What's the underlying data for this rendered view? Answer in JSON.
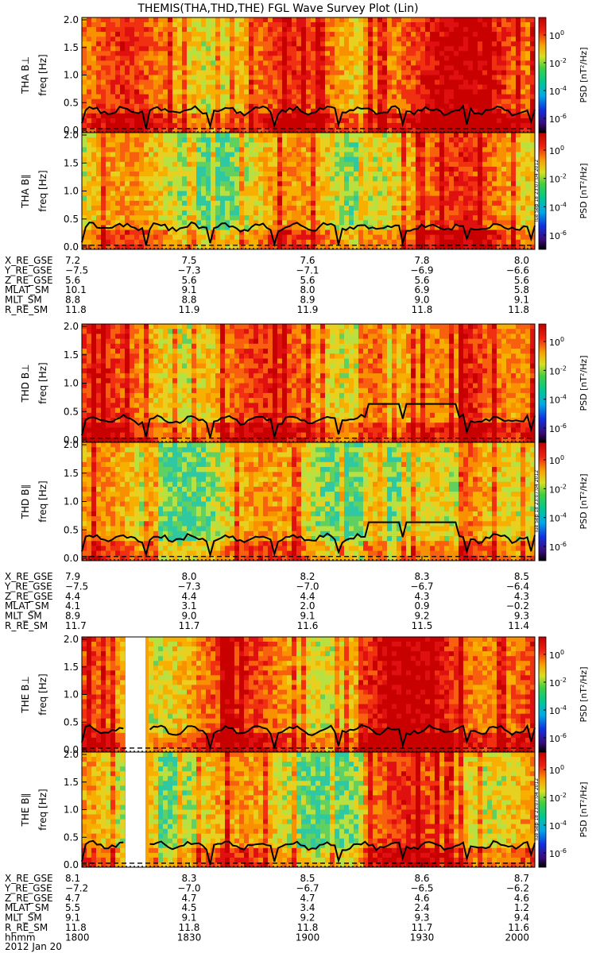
{
  "title": "THEMIS(THA,THD,THE) FGL Wave Survey Plot (Lin)",
  "timestamp": "Tue Sep 18 23:07:04 2012",
  "date_label": "2012 Jan 20",
  "colorbar": {
    "label": "PSD [nT²/Hz]",
    "ticks": [
      {
        "base": "10",
        "exp": "0"
      },
      {
        "base": "10",
        "exp": "-2"
      },
      {
        "base": "10",
        "exp": "-4"
      },
      {
        "base": "10",
        "exp": "-6"
      }
    ]
  },
  "colors": {
    "background": "#f7a300",
    "line": "#000000",
    "hot": "#e01010",
    "cool": "#60d060",
    "cold": "#20c0b0"
  },
  "chart_data": [
    {
      "type": "heatmap",
      "probe": "THA",
      "panels": [
        {
          "label": "THA B⊥",
          "ylabel": "freq [Hz]",
          "ylim": [
            0,
            2.0
          ]
        },
        {
          "label": "THA B∥",
          "ylabel": "freq [Hz]",
          "ylim": [
            0,
            2.0
          ]
        }
      ],
      "yticks": [
        "0.0",
        "0.5",
        "1.0",
        "1.5",
        "2.0"
      ],
      "ephemeris": {
        "labels": [
          "X_RE_GSE",
          "Y_RE_GSE",
          "Z_RE_GSE",
          "MLAT_SM",
          "MLT_SM",
          "R_RE_SM"
        ],
        "rows": [
          [
            "7.2",
            "7.5",
            "7.6",
            "7.8",
            "8.0"
          ],
          [
            "−7.5",
            "−7.3",
            "−7.1",
            "−6.9",
            "−6.6"
          ],
          [
            "5.6",
            "5.6",
            "5.6",
            "5.6",
            "5.6"
          ],
          [
            "10.1",
            "9.1",
            "8.0",
            "6.9",
            "5.8"
          ],
          [
            "8.8",
            "8.8",
            "8.9",
            "9.0",
            "9.1"
          ],
          [
            "11.8",
            "11.9",
            "11.9",
            "11.8",
            "11.8"
          ]
        ]
      }
    },
    {
      "type": "heatmap",
      "probe": "THD",
      "panels": [
        {
          "label": "THD B⊥",
          "ylabel": "freq [Hz]",
          "ylim": [
            0,
            2.0
          ]
        },
        {
          "label": "THD B∥",
          "ylabel": "freq [Hz]",
          "ylim": [
            0,
            2.0
          ]
        }
      ],
      "yticks": [
        "0.0",
        "0.5",
        "1.0",
        "1.5",
        "2.0"
      ],
      "ephemeris": {
        "labels": [
          "X_RE_GSE",
          "Y_RE_GSE",
          "Z_RE_GSE",
          "MLAT_SM",
          "MLT_SM",
          "R_RE_SM"
        ],
        "rows": [
          [
            "7.9",
            "8.0",
            "8.2",
            "8.3",
            "8.5"
          ],
          [
            "−7.5",
            "−7.3",
            "−7.0",
            "−6.7",
            "−6.4"
          ],
          [
            "4.4",
            "4.4",
            "4.4",
            "4.3",
            "4.3"
          ],
          [
            "4.1",
            "3.1",
            "2.0",
            "0.9",
            "−0.2"
          ],
          [
            "8.9",
            "9.0",
            "9.1",
            "9.2",
            "9.3"
          ],
          [
            "11.7",
            "11.7",
            "11.6",
            "11.5",
            "11.4"
          ]
        ]
      }
    },
    {
      "type": "heatmap",
      "probe": "THE",
      "panels": [
        {
          "label": "THE B⊥",
          "ylabel": "freq [Hz]",
          "ylim": [
            0,
            2.0
          ]
        },
        {
          "label": "THE B∥",
          "ylabel": "freq [Hz]",
          "ylim": [
            0,
            2.0
          ]
        }
      ],
      "yticks": [
        "0.0",
        "0.5",
        "1.0",
        "1.5",
        "2.0"
      ],
      "ephemeris": {
        "labels": [
          "X_RE_GSE",
          "Y_RE_GSE",
          "Z_RE_GSE",
          "MLAT_SM",
          "MLT_SM",
          "R_RE_SM",
          "hhmm"
        ],
        "rows": [
          [
            "8.1",
            "8.3",
            "8.5",
            "8.6",
            "8.7"
          ],
          [
            "−7.2",
            "−7.0",
            "−6.7",
            "−6.5",
            "−6.2"
          ],
          [
            "4.7",
            "4.7",
            "4.7",
            "4.6",
            "4.6"
          ],
          [
            "5.5",
            "4.5",
            "3.4",
            "2.4",
            "1.2"
          ],
          [
            "9.1",
            "9.1",
            "9.2",
            "9.3",
            "9.4"
          ],
          [
            "11.8",
            "11.8",
            "11.8",
            "11.7",
            "11.6"
          ],
          [
            "1800",
            "1830",
            "1900",
            "1930",
            "2000"
          ]
        ]
      }
    }
  ]
}
